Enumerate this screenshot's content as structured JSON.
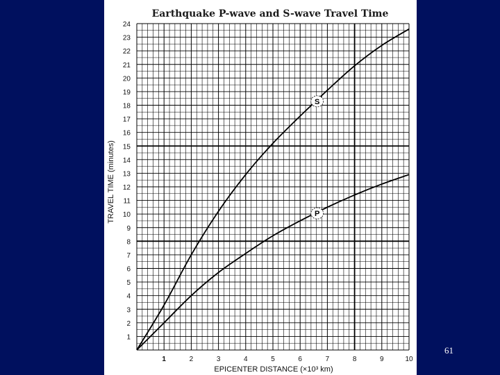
{
  "slide": {
    "page_number": "61",
    "background_color": "#00105e"
  },
  "chart_data": {
    "type": "line",
    "title": "Earthquake P-wave and S-wave Travel Time",
    "xlabel": "EPICENTER DISTANCE (×10³ km)",
    "ylabel": "TRAVEL TIME (minutes)",
    "xlim": [
      0,
      10
    ],
    "ylim": [
      0,
      24
    ],
    "x_ticks": [
      "1",
      "2",
      "3",
      "4",
      "5",
      "6",
      "7",
      "8",
      "9",
      "10"
    ],
    "y_ticks": [
      "1",
      "2",
      "3",
      "4",
      "5",
      "6",
      "7",
      "8",
      "9",
      "10",
      "11",
      "12",
      "13",
      "14",
      "15",
      "16",
      "17",
      "18",
      "19",
      "20",
      "21",
      "22",
      "23",
      "24"
    ],
    "grid": true,
    "series": [
      {
        "name": "S",
        "color": "#000000",
        "x": [
          0,
          1,
          2,
          3,
          4,
          5,
          6,
          7,
          8,
          9,
          10
        ],
        "values": [
          0,
          3.3,
          7.0,
          10.2,
          12.9,
          15.2,
          17.2,
          19.1,
          20.9,
          22.4,
          23.6
        ]
      },
      {
        "name": "P",
        "color": "#000000",
        "x": [
          0,
          1,
          2,
          3,
          4,
          5,
          6,
          7,
          8,
          9,
          10
        ],
        "values": [
          0,
          2.0,
          4.0,
          5.7,
          7.1,
          8.4,
          9.5,
          10.5,
          11.4,
          12.2,
          12.9
        ]
      }
    ]
  }
}
